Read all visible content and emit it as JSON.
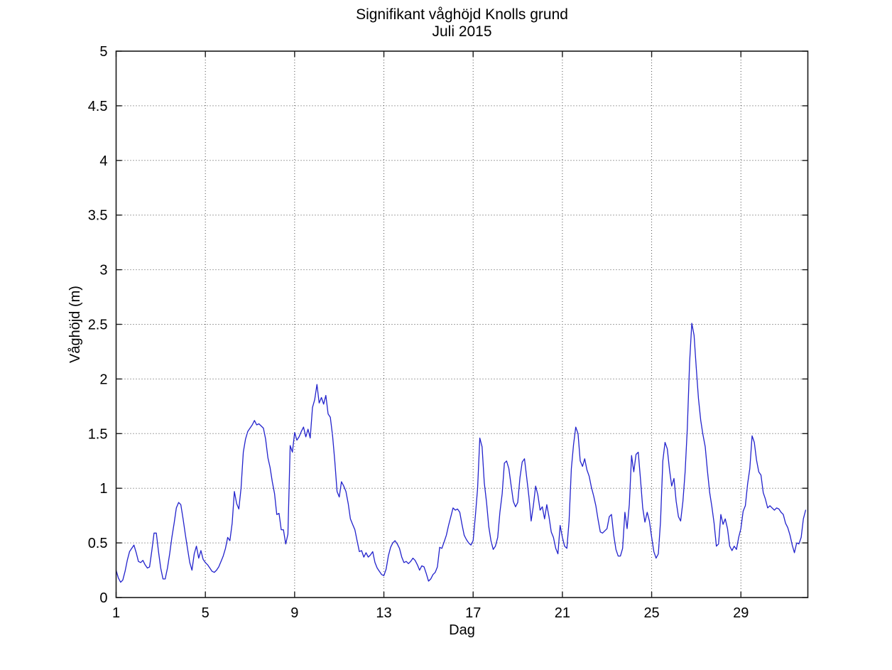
{
  "figure": {
    "background": "#ffffff",
    "text_color": "#000000",
    "axis_box_color": "#1a1a1a",
    "grid_color": "#4d4d4d"
  },
  "chart_data": {
    "type": "line",
    "title": "Signifikant våghöjd Knolls grund",
    "subtitle": "Juli 2015",
    "xlabel": "Dag",
    "ylabel": "Våghöjd (m)",
    "xlim": [
      1,
      32
    ],
    "ylim": [
      0,
      5
    ],
    "x_ticks": [
      1,
      5,
      9,
      13,
      17,
      21,
      25,
      29
    ],
    "x_tick_labels": [
      "1",
      "5",
      "9",
      "13",
      "17",
      "21",
      "25",
      "29"
    ],
    "y_ticks": [
      0,
      0.5,
      1,
      1.5,
      2,
      2.5,
      3,
      3.5,
      4,
      4.5,
      5
    ],
    "y_tick_labels": [
      "0",
      "0.5",
      "1",
      "1.5",
      "2",
      "2.5",
      "3",
      "3.5",
      "4",
      "4.5",
      "5"
    ],
    "grid": true,
    "grid_style": "dotted",
    "legend": "none",
    "series": [
      {
        "name": "Signifikant våghöjd",
        "color": "#2222cc",
        "x_start": 1.0,
        "x_step": 0.1,
        "values": [
          0.25,
          0.18,
          0.14,
          0.16,
          0.24,
          0.34,
          0.42,
          0.45,
          0.48,
          0.41,
          0.33,
          0.32,
          0.34,
          0.3,
          0.27,
          0.28,
          0.43,
          0.59,
          0.59,
          0.42,
          0.27,
          0.17,
          0.17,
          0.27,
          0.4,
          0.55,
          0.68,
          0.82,
          0.87,
          0.85,
          0.72,
          0.58,
          0.45,
          0.32,
          0.25,
          0.4,
          0.47,
          0.36,
          0.43,
          0.35,
          0.32,
          0.3,
          0.27,
          0.24,
          0.23,
          0.25,
          0.28,
          0.33,
          0.38,
          0.45,
          0.55,
          0.52,
          0.68,
          0.97,
          0.86,
          0.81,
          1.0,
          1.33,
          1.45,
          1.52,
          1.55,
          1.58,
          1.62,
          1.58,
          1.59,
          1.57,
          1.55,
          1.45,
          1.28,
          1.19,
          1.06,
          0.95,
          0.76,
          0.77,
          0.62,
          0.62,
          0.49,
          0.58,
          1.39,
          1.33,
          1.51,
          1.44,
          1.47,
          1.52,
          1.56,
          1.47,
          1.54,
          1.46,
          1.74,
          1.81,
          1.95,
          1.78,
          1.83,
          1.77,
          1.85,
          1.68,
          1.65,
          1.48,
          1.25,
          0.97,
          0.92,
          1.06,
          1.02,
          0.97,
          0.86,
          0.72,
          0.67,
          0.62,
          0.52,
          0.42,
          0.43,
          0.37,
          0.41,
          0.37,
          0.39,
          0.42,
          0.32,
          0.27,
          0.24,
          0.21,
          0.2,
          0.26,
          0.38,
          0.46,
          0.5,
          0.52,
          0.49,
          0.45,
          0.37,
          0.32,
          0.33,
          0.31,
          0.33,
          0.36,
          0.34,
          0.3,
          0.25,
          0.29,
          0.28,
          0.22,
          0.15,
          0.17,
          0.21,
          0.23,
          0.28,
          0.46,
          0.45,
          0.51,
          0.57,
          0.66,
          0.74,
          0.82,
          0.8,
          0.81,
          0.78,
          0.67,
          0.57,
          0.53,
          0.5,
          0.48,
          0.52,
          0.75,
          1.0,
          1.46,
          1.38,
          1.05,
          0.87,
          0.65,
          0.52,
          0.44,
          0.47,
          0.55,
          0.78,
          0.95,
          1.23,
          1.25,
          1.18,
          1.03,
          0.88,
          0.83,
          0.87,
          1.1,
          1.24,
          1.27,
          1.1,
          0.92,
          0.7,
          0.84,
          1.02,
          0.94,
          0.8,
          0.83,
          0.72,
          0.85,
          0.74,
          0.6,
          0.55,
          0.45,
          0.4,
          0.66,
          0.55,
          0.47,
          0.45,
          0.7,
          1.18,
          1.4,
          1.56,
          1.5,
          1.25,
          1.2,
          1.27,
          1.17,
          1.11,
          1.01,
          0.93,
          0.84,
          0.71,
          0.6,
          0.59,
          0.61,
          0.63,
          0.74,
          0.76,
          0.57,
          0.44,
          0.38,
          0.38,
          0.45,
          0.78,
          0.63,
          0.85,
          1.3,
          1.15,
          1.31,
          1.33,
          1.08,
          0.82,
          0.69,
          0.78,
          0.7,
          0.55,
          0.42,
          0.36,
          0.4,
          0.7,
          1.25,
          1.42,
          1.36,
          1.17,
          1.02,
          1.09,
          0.88,
          0.74,
          0.7,
          0.88,
          1.15,
          1.55,
          2.15,
          2.51,
          2.4,
          2.1,
          1.82,
          1.62,
          1.49,
          1.38,
          1.16,
          0.96,
          0.83,
          0.68,
          0.47,
          0.49,
          0.76,
          0.67,
          0.72,
          0.63,
          0.47,
          0.43,
          0.47,
          0.44,
          0.55,
          0.63,
          0.79,
          0.84,
          1.04,
          1.18,
          1.48,
          1.42,
          1.26,
          1.15,
          1.12,
          0.96,
          0.9,
          0.82,
          0.84,
          0.82,
          0.8,
          0.82,
          0.81,
          0.78,
          0.76,
          0.68,
          0.64,
          0.57,
          0.48,
          0.41,
          0.5,
          0.49,
          0.55,
          0.72,
          0.8
        ]
      }
    ]
  }
}
